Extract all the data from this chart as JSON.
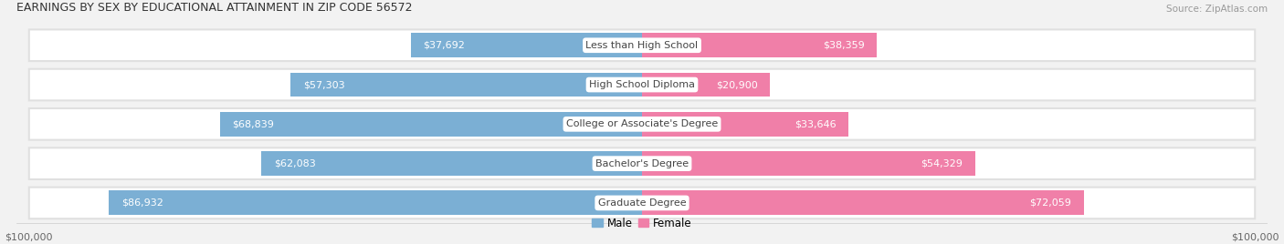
{
  "title": "EARNINGS BY SEX BY EDUCATIONAL ATTAINMENT IN ZIP CODE 56572",
  "source": "Source: ZipAtlas.com",
  "categories": [
    "Less than High School",
    "High School Diploma",
    "College or Associate's Degree",
    "Bachelor's Degree",
    "Graduate Degree"
  ],
  "male_values": [
    37692,
    57303,
    68839,
    62083,
    86932
  ],
  "female_values": [
    38359,
    20900,
    33646,
    54329,
    72059
  ],
  "male_color": "#7bafd4",
  "female_color": "#f07fa8",
  "max_val": 100000,
  "bar_height": 0.62,
  "background_color": "#f2f2f2",
  "bar_bg_color": "#e0e0e0",
  "bar_bg_edge_color": "#d0d0d0",
  "label_color_inside": "#ffffff",
  "label_color_outside": "#555555",
  "category_text_color": "#444444",
  "axis_label_left": "$100,000",
  "axis_label_right": "$100,000",
  "legend_male": "Male",
  "legend_female": "Female",
  "title_fontsize": 9.0,
  "source_fontsize": 7.5,
  "label_fontsize": 8.0,
  "category_fontsize": 8.0,
  "inside_threshold": 15000
}
